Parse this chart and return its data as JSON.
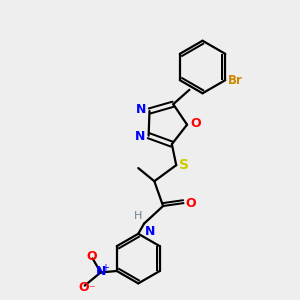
{
  "background_color": "#eeeeee",
  "atom_colors": {
    "C": "#000000",
    "N": "#0000ff",
    "O": "#ff0000",
    "S": "#cccc00",
    "Br": "#cc8800",
    "H": "#708090"
  },
  "bond_color": "#000000",
  "figsize": [
    3.0,
    3.0
  ],
  "dpi": 100,
  "xlim": [
    0,
    10
  ],
  "ylim": [
    0,
    10
  ]
}
